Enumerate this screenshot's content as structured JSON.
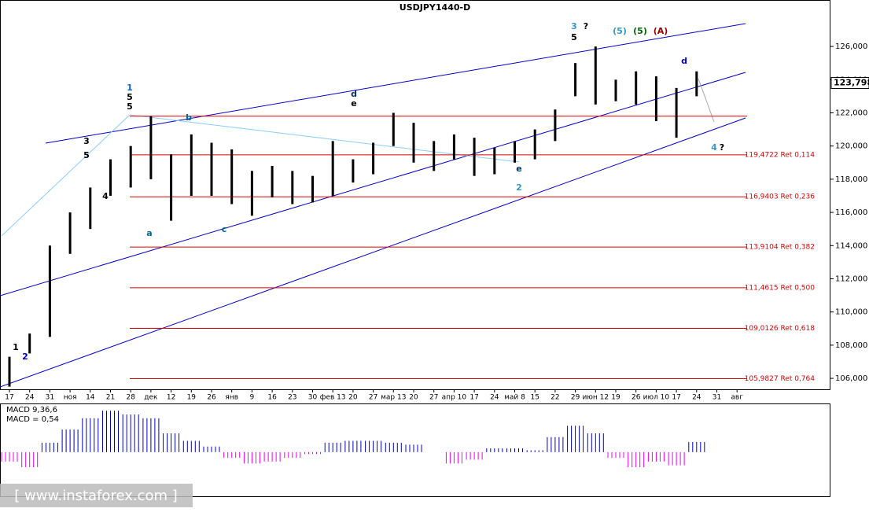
{
  "chart_data": {
    "type": "ohlc",
    "title": "USDJPY1440-D",
    "categories": [
      "17",
      "24",
      "31",
      "ноя",
      "14",
      "21",
      "28",
      "дек",
      "12",
      "19",
      "26",
      "янв",
      "9",
      "16",
      "23",
      "30",
      "фев 13",
      "20",
      "27",
      "мар 13",
      "20",
      "27",
      "апр 10",
      "17",
      "24",
      "май 8",
      "15",
      "22",
      "29",
      "июн 12",
      "19",
      "26",
      "июл 10",
      "17",
      "24",
      "31",
      "авг"
    ],
    "series": [
      {
        "name": "high",
        "color": "#000000",
        "values": [
          107.3,
          108.7,
          114,
          116,
          117.5,
          119.2,
          120,
          121.8,
          119.5,
          120.7,
          120.2,
          119.8,
          118.5,
          118.8,
          118.5,
          118.2,
          120.3,
          119.2,
          120.2,
          122,
          121.4,
          120.3,
          120.7,
          120.5,
          119.9,
          120.3,
          121,
          122.2,
          125,
          126,
          124,
          124.5,
          124.2,
          123.5,
          124.5,
          null,
          null
        ]
      },
      {
        "name": "low",
        "color": "#000000",
        "values": [
          105.5,
          107.5,
          108.5,
          113.5,
          115,
          117,
          117.5,
          118,
          115.5,
          117,
          117,
          116.5,
          115.8,
          116.9,
          116.5,
          116.6,
          117,
          117.8,
          118.3,
          120,
          119,
          118.5,
          119.2,
          118.2,
          118.3,
          119,
          119.2,
          120.3,
          123,
          122.5,
          122.7,
          122.5,
          121.5,
          120.5,
          123,
          null,
          null
        ]
      }
    ],
    "ylim": [
      105.34,
      128.8
    ],
    "yticks": [
      {
        "value": 106,
        "label": "106,000"
      },
      {
        "value": 108,
        "label": "108,000"
      },
      {
        "value": 110,
        "label": "110,000"
      },
      {
        "value": 112,
        "label": "112,000"
      },
      {
        "value": 114,
        "label": "114,000"
      },
      {
        "value": 116,
        "label": "116,000"
      },
      {
        "value": 118,
        "label": "118,000"
      },
      {
        "value": 120,
        "label": "120,000"
      },
      {
        "value": 122,
        "label": "122,000"
      },
      {
        "value": 124,
        "label": "124,000"
      },
      {
        "value": 126,
        "label": "126,000"
      }
    ],
    "current_price": {
      "value": 123.798,
      "label": "123,798"
    },
    "levels": [
      {
        "value": 121.8
      },
      {
        "value": 119.4722,
        "label": "119,4722 Ret 0,114"
      },
      {
        "value": 116.9403,
        "label": "116,9403 Ret 0,236"
      },
      {
        "value": 113.9104,
        "label": "113,9104 Ret 0,382"
      },
      {
        "value": 111.4615,
        "label": "111,4615 Ret 0,500"
      },
      {
        "value": 109.0126,
        "label": "109,0126 Ret 0,618"
      },
      {
        "value": 105.9827,
        "label": "105,9827 Ret 0,764"
      }
    ],
    "annotations": [
      "1",
      "5",
      "5",
      "3",
      "5",
      "?",
      "(5)",
      "(5)",
      "(A)",
      "d",
      "e",
      "4",
      "?",
      "1",
      "2",
      "a",
      "b",
      "c",
      "d",
      "e",
      "2",
      "3",
      "5",
      "4"
    ],
    "macd": {
      "title": "MACD 9,36,6",
      "value_label": "MACD = 0,54",
      "ylim": [
        -2.3,
        2.5
      ],
      "values": [
        -0.5,
        -0.8,
        0.5,
        1.2,
        1.8,
        2.2,
        2.0,
        1.8,
        1.0,
        0.6,
        0.3,
        -0.3,
        -0.6,
        -0.5,
        -0.3,
        -0.1,
        0.5,
        0.6,
        0.6,
        0.5,
        0.4,
        0,
        -0.6,
        -0.4,
        0.2,
        0.2,
        0.1,
        0.8,
        1.4,
        1.0,
        -0.3,
        -0.8,
        -0.5,
        -0.7,
        0.54,
        null,
        null
      ]
    },
    "watermark": "[ www.instaforex.com ]"
  }
}
